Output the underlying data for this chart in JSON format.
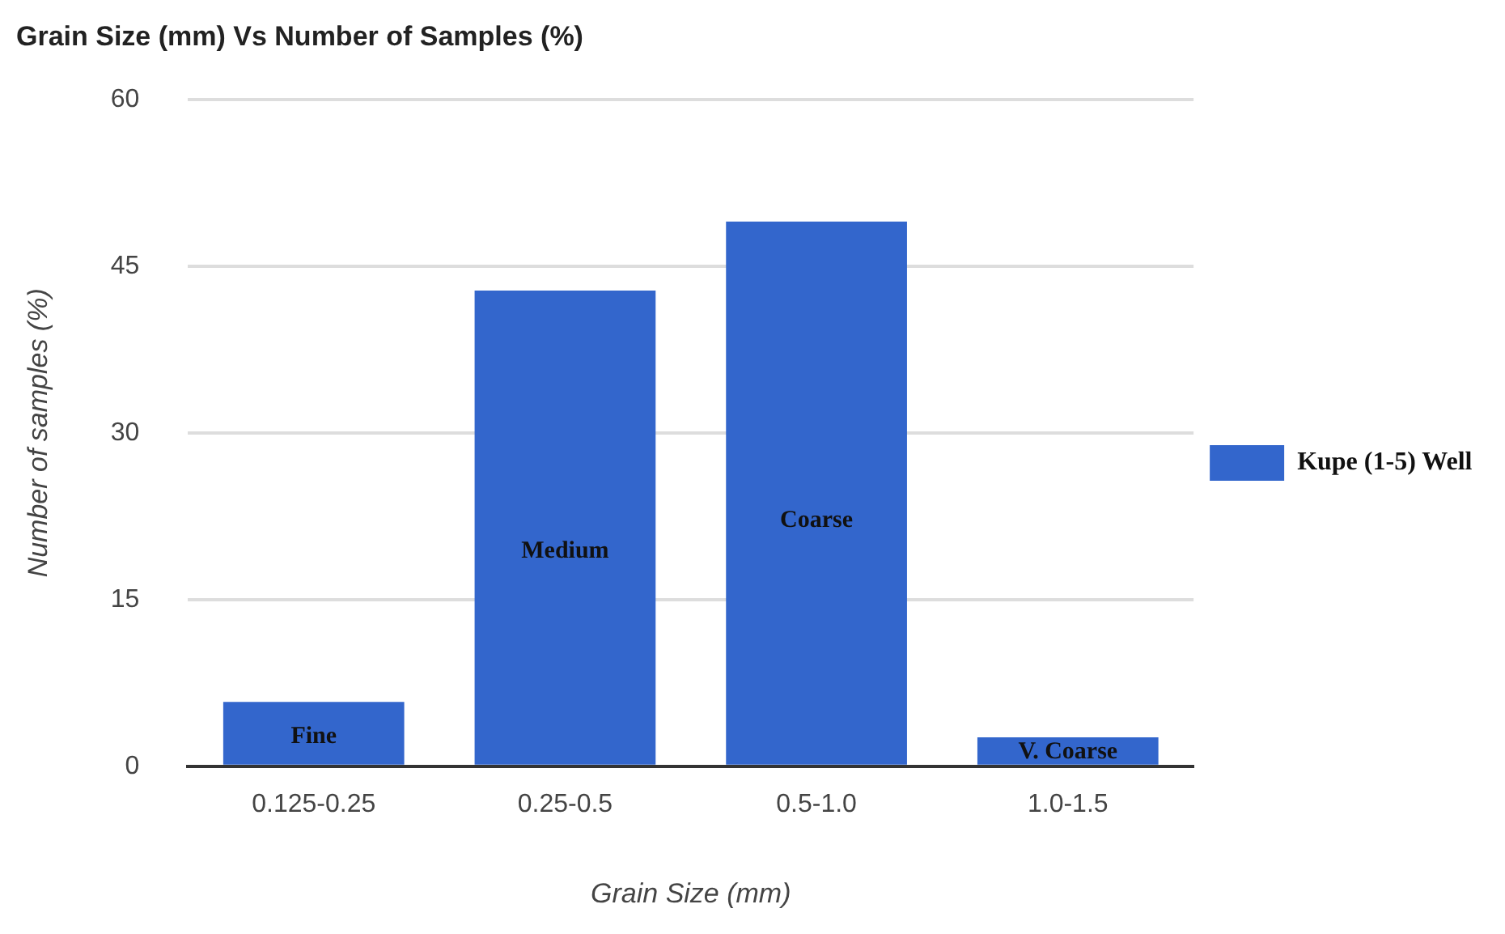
{
  "chart_data": {
    "type": "bar",
    "title": "Grain Size (mm) Vs Number of Samples (%)",
    "xlabel": "Grain Size (mm)",
    "ylabel": "Number of samples (%)",
    "categories": [
      "0.125-0.25",
      "0.25-0.5",
      "0.5-1.0",
      "1.0-1.5"
    ],
    "series": [
      {
        "name": "Kupe (1-5) Well",
        "color": "#3366cc",
        "values": [
          5.8,
          42.8,
          49.0,
          2.6
        ]
      }
    ],
    "ylim": [
      0,
      60
    ],
    "yticks": [
      0,
      15,
      30,
      45,
      60
    ],
    "grid": "y",
    "legend": "right",
    "annotations": [
      "Fine",
      "Medium",
      "Coarse",
      "V. Coarse"
    ]
  }
}
